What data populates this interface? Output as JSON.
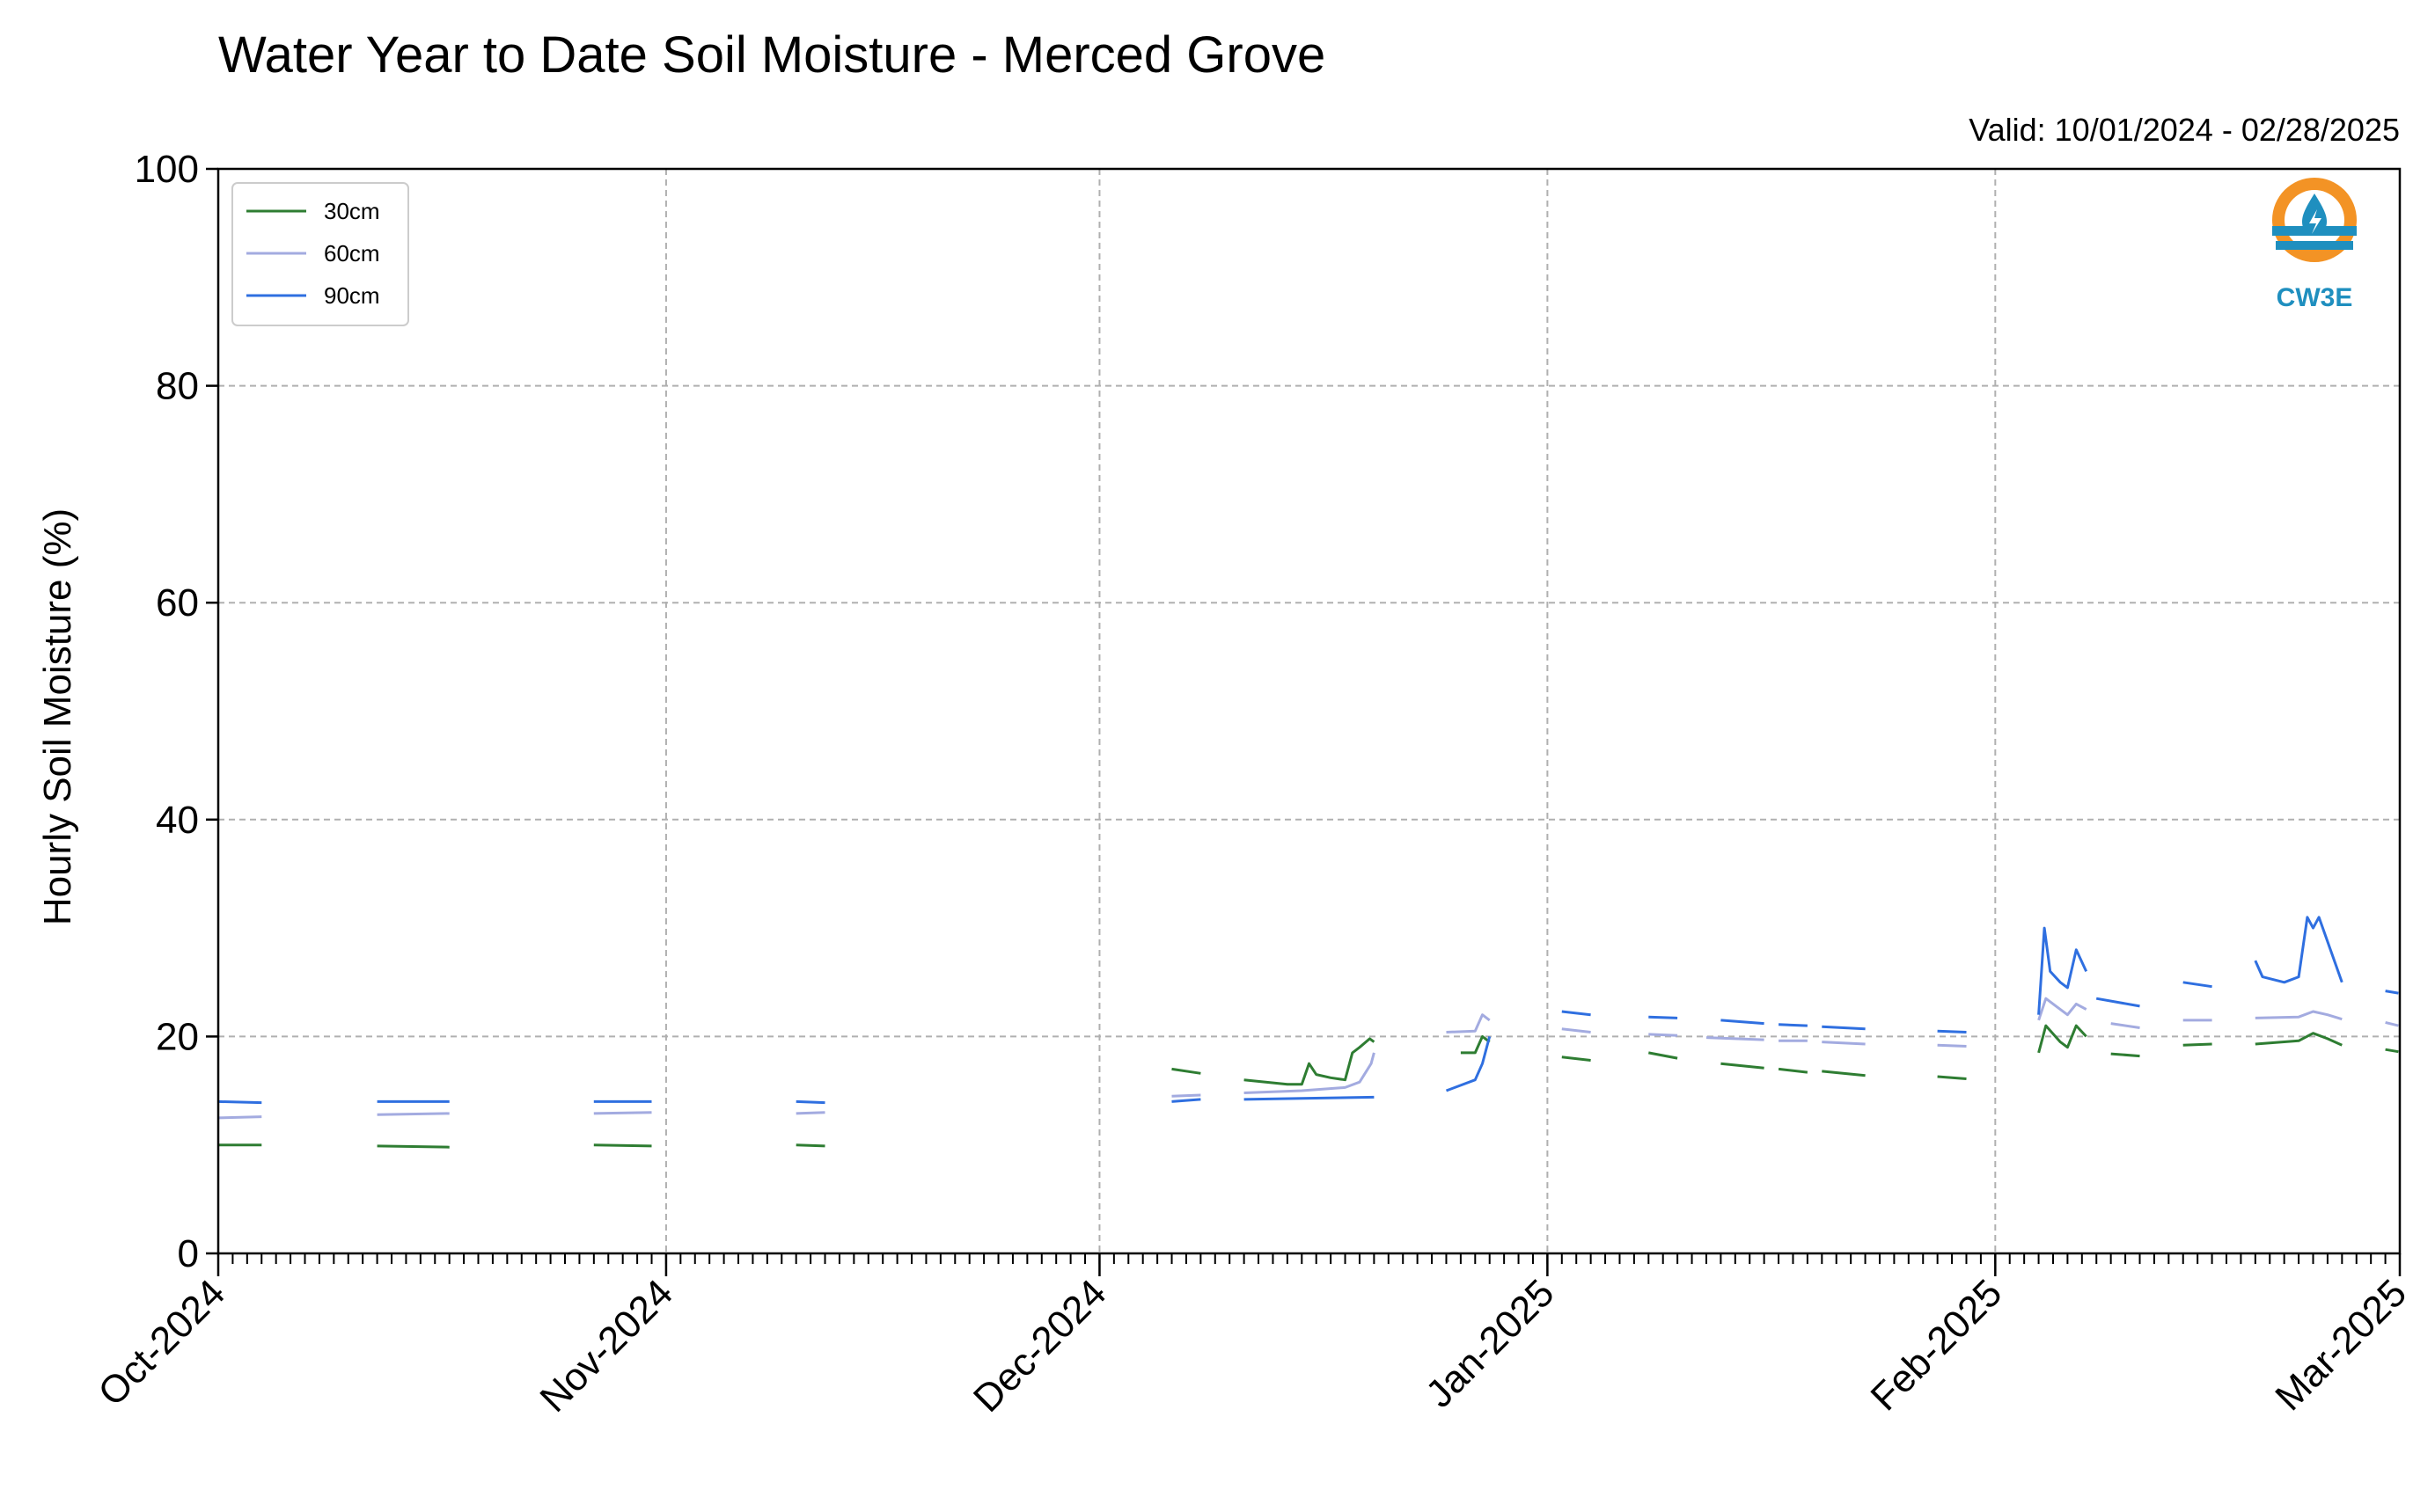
{
  "chart_data": {
    "type": "line",
    "title": "Water Year to Date Soil Moisture - Merced Grove",
    "subtitle": "Valid: 10/01/2024 - 02/28/2025",
    "xlabel": "",
    "ylabel": "Hourly Soil Moisture (%)",
    "ylim": [
      0,
      100
    ],
    "xlim": [
      "2024-10-01",
      "2025-03-01"
    ],
    "yticks": [
      "0",
      "20",
      "40",
      "60",
      "80",
      "100"
    ],
    "xticks": [
      {
        "date": "2024-10-01",
        "label": "Oct-2024"
      },
      {
        "date": "2024-11-01",
        "label": "Nov-2024"
      },
      {
        "date": "2024-12-01",
        "label": "Dec-2024"
      },
      {
        "date": "2025-01-01",
        "label": "Jan-2025"
      },
      {
        "date": "2025-02-01",
        "label": "Feb-2025"
      },
      {
        "date": "2025-03-01",
        "label": "Mar-2025"
      }
    ],
    "grid": true,
    "legend_position": "top-left",
    "series": [
      {
        "name": "30cm",
        "color": "#2e7d32",
        "segments": [
          [
            [
              "2024-10-01",
              10.0
            ],
            [
              "2024-10-04",
              10.0
            ]
          ],
          [
            [
              "2024-10-12",
              9.9
            ],
            [
              "2024-10-17",
              9.8
            ]
          ],
          [
            [
              "2024-10-27",
              10.0
            ],
            [
              "2024-10-31",
              9.9
            ]
          ],
          [
            [
              "2024-11-10",
              10.0
            ],
            [
              "2024-11-12",
              9.9
            ]
          ],
          [
            [
              "2024-12-06",
              17.0
            ],
            [
              "2024-12-08",
              16.6
            ]
          ],
          [
            [
              "2024-12-11",
              16.0
            ],
            [
              "2024-12-14",
              15.6
            ],
            [
              "2024-12-15",
              15.6
            ],
            [
              "2024-12-15.5",
              17.5
            ],
            [
              "2024-12-16",
              16.5
            ],
            [
              "2024-12-17",
              16.2
            ],
            [
              "2024-12-18",
              16.0
            ],
            [
              "2024-12-18.5",
              18.5
            ],
            [
              "2024-12-19",
              19.0
            ],
            [
              "2024-12-19.7",
              19.8
            ],
            [
              "2024-12-20",
              19.5
            ]
          ],
          [
            [
              "2024-12-26",
              18.5
            ],
            [
              "2024-12-27",
              18.5
            ],
            [
              "2024-12-27.5",
              20.0
            ],
            [
              "2024-12-28",
              19.5
            ]
          ],
          [
            [
              "2025-01-02",
              18.1
            ],
            [
              "2025-01-04",
              17.8
            ]
          ],
          [
            [
              "2025-01-08",
              18.5
            ],
            [
              "2025-01-10",
              18.0
            ]
          ],
          [
            [
              "2025-01-13",
              17.5
            ],
            [
              "2025-01-16",
              17.1
            ]
          ],
          [
            [
              "2025-01-17",
              17.0
            ],
            [
              "2025-01-19",
              16.7
            ]
          ],
          [
            [
              "2025-01-20",
              16.8
            ],
            [
              "2025-01-23",
              16.4
            ]
          ],
          [
            [
              "2025-01-28",
              16.3
            ],
            [
              "2025-01-30",
              16.1
            ]
          ],
          [
            [
              "2025-02-04",
              18.5
            ],
            [
              "2025-02-04.5",
              21.0
            ],
            [
              "2025-02-05.5",
              19.5
            ],
            [
              "2025-02-06",
              19.0
            ],
            [
              "2025-02-06.6",
              21.0
            ],
            [
              "2025-02-07.3",
              20.0
            ]
          ],
          [
            [
              "2025-02-09",
              18.4
            ],
            [
              "2025-02-11",
              18.2
            ]
          ],
          [
            [
              "2025-02-14",
              19.2
            ],
            [
              "2025-02-16",
              19.3
            ]
          ],
          [
            [
              "2025-02-19",
              19.3
            ],
            [
              "2025-02-22",
              19.6
            ],
            [
              "2025-02-23",
              20.3
            ],
            [
              "2025-02-24",
              19.8
            ],
            [
              "2025-02-25",
              19.2
            ]
          ],
          [
            [
              "2025-02-28",
              18.8
            ],
            [
              "2025-02-28.9",
              18.6
            ]
          ]
        ]
      },
      {
        "name": "60cm",
        "color": "#a3abe0",
        "segments": [
          [
            [
              "2024-10-01",
              12.5
            ],
            [
              "2024-10-04",
              12.6
            ]
          ],
          [
            [
              "2024-10-12",
              12.8
            ],
            [
              "2024-10-17",
              12.9
            ]
          ],
          [
            [
              "2024-10-27",
              12.9
            ],
            [
              "2024-10-31",
              13.0
            ]
          ],
          [
            [
              "2024-11-10",
              12.9
            ],
            [
              "2024-11-12",
              13.0
            ]
          ],
          [
            [
              "2024-12-06",
              14.5
            ],
            [
              "2024-12-08",
              14.6
            ]
          ],
          [
            [
              "2024-12-11",
              14.8
            ],
            [
              "2024-12-15",
              15.0
            ],
            [
              "2024-12-18",
              15.3
            ],
            [
              "2024-12-19",
              15.8
            ],
            [
              "2024-12-19.8",
              17.5
            ],
            [
              "2024-12-20",
              18.5
            ]
          ],
          [
            [
              "2024-12-25",
              20.4
            ],
            [
              "2024-12-27",
              20.5
            ],
            [
              "2024-12-27.5",
              22.0
            ],
            [
              "2024-12-28",
              21.5
            ]
          ],
          [
            [
              "2025-01-02",
              20.7
            ],
            [
              "2025-01-04",
              20.4
            ]
          ],
          [
            [
              "2025-01-08",
              20.2
            ],
            [
              "2025-01-10",
              20.1
            ]
          ],
          [
            [
              "2025-01-12",
              19.9
            ],
            [
              "2025-01-16",
              19.7
            ]
          ],
          [
            [
              "2025-01-17",
              19.6
            ],
            [
              "2025-01-19",
              19.6
            ]
          ],
          [
            [
              "2025-01-20",
              19.5
            ],
            [
              "2025-01-23",
              19.3
            ]
          ],
          [
            [
              "2025-01-28",
              19.2
            ],
            [
              "2025-01-30",
              19.1
            ]
          ],
          [
            [
              "2025-02-04",
              21.5
            ],
            [
              "2025-02-04.5",
              23.5
            ],
            [
              "2025-02-05.5",
              22.5
            ],
            [
              "2025-02-06",
              22.0
            ],
            [
              "2025-02-06.6",
              23.0
            ],
            [
              "2025-02-07.3",
              22.5
            ]
          ],
          [
            [
              "2025-02-09",
              21.2
            ],
            [
              "2025-02-11",
              20.8
            ]
          ],
          [
            [
              "2025-02-14",
              21.5
            ],
            [
              "2025-02-16",
              21.5
            ]
          ],
          [
            [
              "2025-02-19",
              21.7
            ],
            [
              "2025-02-22",
              21.8
            ],
            [
              "2025-02-23",
              22.3
            ],
            [
              "2025-02-24",
              22.0
            ],
            [
              "2025-02-25",
              21.6
            ]
          ],
          [
            [
              "2025-02-28",
              21.3
            ],
            [
              "2025-02-28.9",
              21.0
            ]
          ]
        ]
      },
      {
        "name": "90cm",
        "color": "#2f6fe0",
        "segments": [
          [
            [
              "2024-10-01",
              14.0
            ],
            [
              "2024-10-04",
              13.9
            ]
          ],
          [
            [
              "2024-10-12",
              14.0
            ],
            [
              "2024-10-17",
              14.0
            ]
          ],
          [
            [
              "2024-10-27",
              14.0
            ],
            [
              "2024-10-31",
              14.0
            ]
          ],
          [
            [
              "2024-11-10",
              14.0
            ],
            [
              "2024-11-12",
              13.9
            ]
          ],
          [
            [
              "2024-12-06",
              14.0
            ],
            [
              "2024-12-08",
              14.2
            ]
          ],
          [
            [
              "2024-12-11",
              14.2
            ],
            [
              "2024-12-15",
              14.3
            ],
            [
              "2024-12-20",
              14.4
            ]
          ],
          [
            [
              "2024-12-25",
              15.0
            ],
            [
              "2024-12-27",
              16.0
            ],
            [
              "2024-12-27.5",
              17.5
            ],
            [
              "2024-12-28",
              20.0
            ]
          ],
          [
            [
              "2025-01-02",
              22.3
            ],
            [
              "2025-01-04",
              22.0
            ]
          ],
          [
            [
              "2025-01-08",
              21.8
            ],
            [
              "2025-01-10",
              21.7
            ]
          ],
          [
            [
              "2025-01-13",
              21.5
            ],
            [
              "2025-01-16",
              21.2
            ]
          ],
          [
            [
              "2025-01-17",
              21.1
            ],
            [
              "2025-01-19",
              21.0
            ]
          ],
          [
            [
              "2025-01-20",
              20.9
            ],
            [
              "2025-01-23",
              20.7
            ]
          ],
          [
            [
              "2025-01-28",
              20.5
            ],
            [
              "2025-01-30",
              20.4
            ]
          ],
          [
            [
              "2025-02-04",
              22.0
            ],
            [
              "2025-02-04.4",
              30.0
            ],
            [
              "2025-02-04.8",
              26.0
            ],
            [
              "2025-02-05.5",
              25.0
            ],
            [
              "2025-02-06",
              24.5
            ],
            [
              "2025-02-06.6",
              28.0
            ],
            [
              "2025-02-07.3",
              26.0
            ]
          ],
          [
            [
              "2025-02-08",
              23.5
            ],
            [
              "2025-02-11",
              22.8
            ]
          ],
          [
            [
              "2025-02-14",
              25.0
            ],
            [
              "2025-02-16",
              24.6
            ]
          ],
          [
            [
              "2025-02-19",
              27.0
            ],
            [
              "2025-02-19.5",
              25.5
            ],
            [
              "2025-02-21",
              25.0
            ],
            [
              "2025-02-22",
              25.5
            ],
            [
              "2025-02-22.6",
              31.0
            ],
            [
              "2025-02-23",
              30.0
            ],
            [
              "2025-02-23.4",
              31.0
            ],
            [
              "2025-02-24.2",
              28.0
            ],
            [
              "2025-02-25",
              25.0
            ]
          ],
          [
            [
              "2025-02-28",
              24.2
            ],
            [
              "2025-02-28.9",
              24.0
            ]
          ]
        ]
      }
    ]
  },
  "logo": {
    "text": "CW3E",
    "ring_color": "#f39325",
    "water_color": "#1f8fbf"
  }
}
